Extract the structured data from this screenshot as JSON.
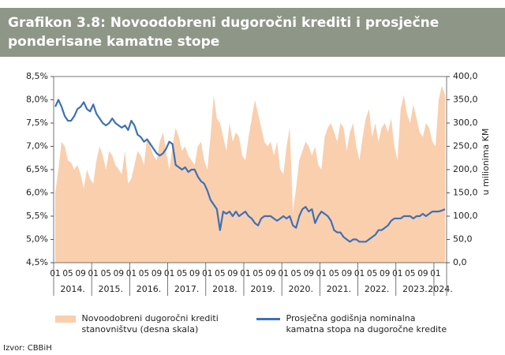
{
  "chart_data": {
    "type": "line",
    "title": "Grafikon 3.8: Novoodobreni dugoročni krediti i prosječne ponderisane kamatne stope",
    "y2_label": "u milionima KM",
    "source": "Izvor: CBBiH",
    "categories": [
      "01",
      null,
      null,
      null,
      "05",
      null,
      null,
      null,
      "09",
      null,
      null,
      null,
      "01",
      null,
      null,
      null,
      "05",
      null,
      null,
      null,
      "09",
      null,
      null,
      null,
      "01",
      null,
      null,
      null,
      "05",
      null,
      null,
      null,
      "09",
      null,
      null,
      null,
      "01",
      null,
      null,
      null,
      "05",
      null,
      null,
      null,
      "09",
      null,
      null,
      null,
      "01",
      null,
      null,
      null,
      "05",
      null,
      null,
      null,
      "09",
      null,
      null,
      null,
      "01",
      null,
      null,
      null,
      "05",
      null,
      null,
      null,
      "09",
      null,
      null,
      null,
      "01",
      null,
      null,
      null,
      "05",
      null,
      null,
      null,
      "09",
      null,
      null,
      null,
      "01",
      null,
      null,
      null,
      "05",
      null,
      null,
      null,
      "09",
      null,
      null,
      null,
      "01",
      null,
      null,
      null,
      "05",
      null,
      null,
      null,
      "09",
      null,
      null,
      null,
      "01",
      null,
      null,
      null,
      "05",
      null,
      null,
      null,
      "09",
      null,
      null,
      null,
      "01",
      null,
      null,
      null
    ],
    "years": [
      "2014.",
      "2015.",
      "2016.",
      "2017.",
      "2018.",
      "2019.",
      "2020.",
      "2021.",
      "2022.",
      "2023.",
      "2024."
    ],
    "ylim": [
      4.5,
      8.5
    ],
    "yticks": [
      {
        "value": 4.5,
        "label": "4,5%"
      },
      {
        "value": 5.0,
        "label": "5,0%"
      },
      {
        "value": 5.5,
        "label": "5,5%"
      },
      {
        "value": 6.0,
        "label": "6,0%"
      },
      {
        "value": 6.5,
        "label": "6,5%"
      },
      {
        "value": 7.0,
        "label": "7,0%"
      },
      {
        "value": 7.5,
        "label": "7,5%"
      },
      {
        "value": 8.0,
        "label": "8,0%"
      },
      {
        "value": 8.5,
        "label": "8,5%"
      }
    ],
    "y2lim": [
      0,
      400
    ],
    "y2ticks": [
      {
        "value": 0,
        "label": "0,0"
      },
      {
        "value": 50,
        "label": "50,0"
      },
      {
        "value": 100,
        "label": "100,0"
      },
      {
        "value": 150,
        "label": "150,0"
      },
      {
        "value": 200,
        "label": "200,0"
      },
      {
        "value": 250,
        "label": "250,0"
      },
      {
        "value": 300,
        "label": "300,0"
      },
      {
        "value": 350,
        "label": "350,0"
      },
      {
        "value": 400,
        "label": "400,0"
      }
    ],
    "series": [
      {
        "name": "Novoodobreni dugoročni krediti stanovništvu (desna skala)",
        "type": "area",
        "axis": "y2",
        "color": "#f9cfae",
        "values": [
          150,
          200,
          260,
          250,
          220,
          215,
          200,
          210,
          190,
          160,
          200,
          180,
          170,
          220,
          250,
          230,
          200,
          240,
          230,
          210,
          200,
          190,
          240,
          170,
          180,
          210,
          240,
          230,
          210,
          270,
          250,
          230,
          220,
          260,
          280,
          240,
          200,
          250,
          290,
          270,
          240,
          250,
          230,
          220,
          210,
          250,
          260,
          220,
          200,
          270,
          360,
          310,
          300,
          270,
          240,
          300,
          260,
          280,
          270,
          230,
          220,
          270,
          310,
          350,
          320,
          290,
          260,
          250,
          260,
          230,
          260,
          200,
          190,
          250,
          290,
          110,
          160,
          220,
          240,
          260,
          250,
          230,
          250,
          210,
          200,
          270,
          290,
          300,
          280,
          260,
          300,
          290,
          240,
          280,
          300,
          250,
          220,
          270,
          310,
          330,
          270,
          300,
          260,
          290,
          300,
          280,
          310,
          250,
          220,
          330,
          360,
          320,
          300,
          340,
          310,
          280,
          270,
          300,
          290,
          260,
          250,
          350,
          380,
          360
        ]
      },
      {
        "name": "Prosječna godišnja nominalna kamatna stopa na dugoročne kredite",
        "type": "line",
        "axis": "y",
        "color": "#3e70b5",
        "values": [
          7.85,
          8.0,
          7.85,
          7.65,
          7.55,
          7.55,
          7.65,
          7.8,
          7.85,
          7.95,
          7.8,
          7.75,
          7.9,
          7.7,
          7.6,
          7.5,
          7.45,
          7.5,
          7.6,
          7.5,
          7.45,
          7.4,
          7.45,
          7.35,
          7.55,
          7.45,
          7.25,
          7.2,
          7.1,
          7.15,
          7.05,
          6.95,
          6.85,
          6.8,
          6.85,
          6.95,
          7.1,
          7.05,
          6.6,
          6.55,
          6.5,
          6.55,
          6.45,
          6.5,
          6.5,
          6.35,
          6.25,
          6.2,
          6.05,
          5.85,
          5.75,
          5.65,
          5.2,
          5.6,
          5.55,
          5.6,
          5.5,
          5.6,
          5.5,
          5.55,
          5.6,
          5.5,
          5.45,
          5.35,
          5.3,
          5.45,
          5.5,
          5.5,
          5.5,
          5.45,
          5.4,
          5.45,
          5.5,
          5.45,
          5.5,
          5.3,
          5.25,
          5.5,
          5.65,
          5.7,
          5.6,
          5.65,
          5.35,
          5.5,
          5.6,
          5.55,
          5.5,
          5.4,
          5.2,
          5.15,
          5.15,
          5.05,
          5.0,
          4.95,
          5.0,
          5.0,
          4.95,
          4.95,
          4.95,
          5.0,
          5.05,
          5.1,
          5.2,
          5.2,
          5.25,
          5.3,
          5.4,
          5.45,
          5.45,
          5.45,
          5.5,
          5.5,
          5.5,
          5.45,
          5.5,
          5.5,
          5.55,
          5.5,
          5.55,
          5.6,
          5.6,
          5.6,
          5.62,
          5.65
        ]
      }
    ]
  }
}
